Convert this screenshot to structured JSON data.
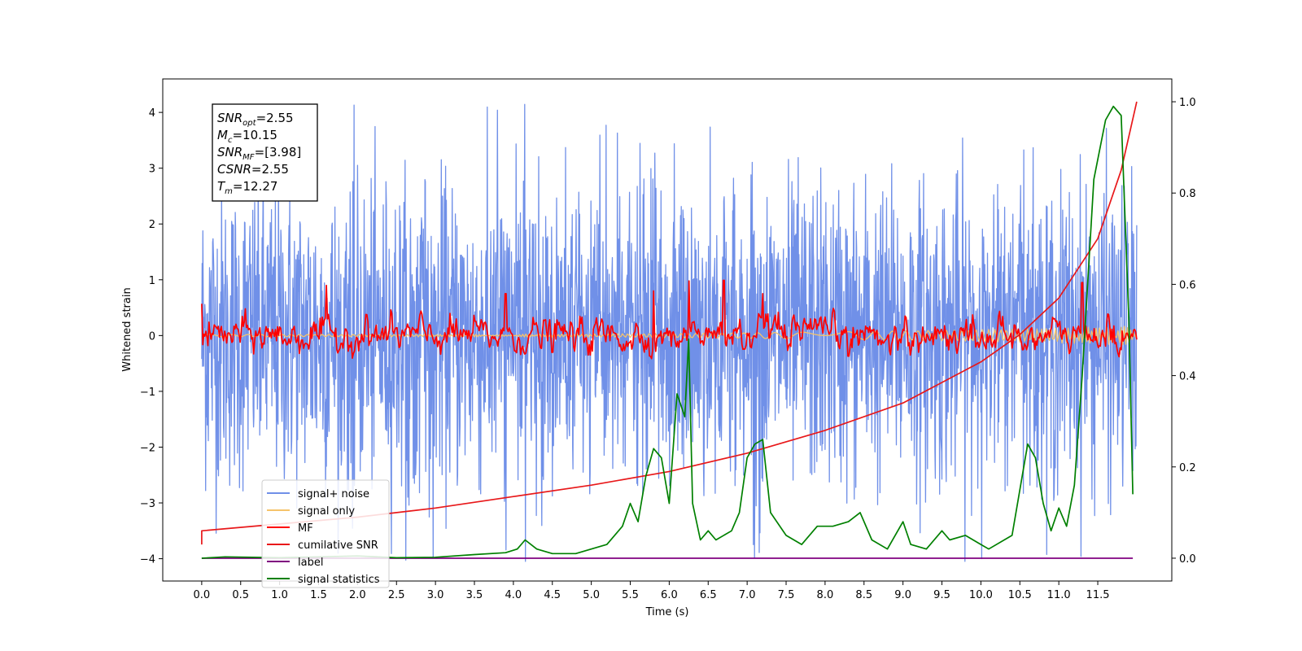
{
  "chart_data": {
    "type": "line",
    "title": "",
    "xlabel": "Time (s)",
    "ylabel": "Whitened strain",
    "xlim": [
      -0.5,
      12.45
    ],
    "ylim": [
      -4.4,
      4.6
    ],
    "y2lim": [
      -0.05,
      1.05
    ],
    "x_ticks": [
      "0.0",
      "0.5",
      "1.0",
      "1.5",
      "2.0",
      "2.5",
      "3.0",
      "3.5",
      "4.0",
      "4.5",
      "5.0",
      "5.5",
      "6.0",
      "6.5",
      "7.0",
      "7.5",
      "8.0",
      "8.5",
      "9.0",
      "9.5",
      "10.0",
      "10.5",
      "11.0",
      "11.5"
    ],
    "y_ticks": [
      "4",
      "3",
      "2",
      "1",
      "0",
      "−1",
      "−2",
      "−3",
      "−4"
    ],
    "y2_ticks": [
      "1.0",
      "0.8",
      "0.6",
      "0.4",
      "0.2",
      "0.0"
    ],
    "grid": false,
    "legend_position": "lower-left",
    "annotation": {
      "lines": [
        {
          "base": "SNR",
          "sub": "opt",
          "value": "=2.55"
        },
        {
          "base": "M",
          "sub": "c",
          "value": "=10.15"
        },
        {
          "base": "SNR",
          "sub": "MF",
          "value": "=[3.98]"
        },
        {
          "base": "CSNR",
          "sub": "",
          "value": "=2.55"
        },
        {
          "base": "T",
          "sub": "m",
          "value": "=12.27"
        }
      ]
    },
    "series": [
      {
        "name": "signal+ noise",
        "color": "#7090e8",
        "kind": "noise",
        "x_range": [
          0,
          12.0
        ],
        "amplitude": 4.15,
        "axis": "left"
      },
      {
        "name": "signal only",
        "color": "#f5c36b",
        "kind": "chirp",
        "x_range": [
          0,
          12.0
        ],
        "amplitude": 0.15,
        "axis": "left"
      },
      {
        "name": "MF",
        "color": "#ff0000",
        "kind": "noise",
        "x_range": [
          0,
          12.0
        ],
        "amplitude": 1.0,
        "axis": "left",
        "peaks": [
          [
            0.0,
            0.57
          ],
          [
            1.6,
            0.9
          ],
          [
            3.9,
            0.75
          ],
          [
            5.8,
            0.8
          ],
          [
            6.25,
            0.98
          ],
          [
            6.7,
            0.99
          ],
          [
            7.2,
            0.75
          ],
          [
            11.3,
            0.95
          ]
        ]
      },
      {
        "name": "cumilative SNR",
        "color": "#e8181a",
        "kind": "curve",
        "axis": "right",
        "points": [
          [
            0.0,
            0.03
          ],
          [
            0.0,
            0.06
          ],
          [
            1.0,
            0.075
          ],
          [
            2.0,
            0.09
          ],
          [
            3.0,
            0.11
          ],
          [
            4.0,
            0.135
          ],
          [
            5.0,
            0.16
          ],
          [
            6.0,
            0.19
          ],
          [
            7.0,
            0.23
          ],
          [
            8.0,
            0.28
          ],
          [
            9.0,
            0.34
          ],
          [
            10.0,
            0.43
          ],
          [
            10.5,
            0.49
          ],
          [
            11.0,
            0.57
          ],
          [
            11.5,
            0.7
          ],
          [
            11.8,
            0.85
          ],
          [
            12.0,
            1.0
          ]
        ]
      },
      {
        "name": "label",
        "color": "#800080",
        "kind": "flat",
        "axis": "right",
        "points": [
          [
            0.0,
            0.0
          ],
          [
            11.95,
            0.0
          ]
        ]
      },
      {
        "name": "signal statistics",
        "color": "#008000",
        "kind": "curve",
        "axis": "right",
        "points": [
          [
            0.0,
            0.0
          ],
          [
            0.3,
            0.003
          ],
          [
            1.0,
            0.001
          ],
          [
            2.0,
            0.005
          ],
          [
            2.5,
            0.001
          ],
          [
            3.0,
            0.002
          ],
          [
            3.5,
            0.008
          ],
          [
            3.9,
            0.012
          ],
          [
            4.05,
            0.02
          ],
          [
            4.15,
            0.04
          ],
          [
            4.3,
            0.02
          ],
          [
            4.5,
            0.01
          ],
          [
            4.8,
            0.01
          ],
          [
            5.0,
            0.02
          ],
          [
            5.2,
            0.03
          ],
          [
            5.4,
            0.07
          ],
          [
            5.5,
            0.12
          ],
          [
            5.6,
            0.08
          ],
          [
            5.7,
            0.18
          ],
          [
            5.8,
            0.24
          ],
          [
            5.9,
            0.22
          ],
          [
            6.0,
            0.12
          ],
          [
            6.1,
            0.36
          ],
          [
            6.2,
            0.31
          ],
          [
            6.25,
            0.48
          ],
          [
            6.3,
            0.12
          ],
          [
            6.4,
            0.04
          ],
          [
            6.5,
            0.06
          ],
          [
            6.6,
            0.04
          ],
          [
            6.8,
            0.06
          ],
          [
            6.9,
            0.1
          ],
          [
            7.0,
            0.22
          ],
          [
            7.1,
            0.25
          ],
          [
            7.2,
            0.26
          ],
          [
            7.3,
            0.1
          ],
          [
            7.5,
            0.05
          ],
          [
            7.7,
            0.03
          ],
          [
            7.9,
            0.07
          ],
          [
            8.1,
            0.07
          ],
          [
            8.3,
            0.08
          ],
          [
            8.45,
            0.1
          ],
          [
            8.6,
            0.04
          ],
          [
            8.8,
            0.02
          ],
          [
            9.0,
            0.08
          ],
          [
            9.1,
            0.03
          ],
          [
            9.3,
            0.02
          ],
          [
            9.5,
            0.06
          ],
          [
            9.6,
            0.04
          ],
          [
            9.8,
            0.05
          ],
          [
            10.0,
            0.03
          ],
          [
            10.1,
            0.02
          ],
          [
            10.4,
            0.05
          ],
          [
            10.6,
            0.25
          ],
          [
            10.7,
            0.22
          ],
          [
            10.8,
            0.12
          ],
          [
            10.9,
            0.06
          ],
          [
            11.0,
            0.11
          ],
          [
            11.1,
            0.07
          ],
          [
            11.2,
            0.16
          ],
          [
            11.3,
            0.4
          ],
          [
            11.45,
            0.83
          ],
          [
            11.6,
            0.96
          ],
          [
            11.7,
            0.99
          ],
          [
            11.8,
            0.97
          ],
          [
            11.9,
            0.52
          ],
          [
            11.95,
            0.14
          ]
        ]
      }
    ]
  }
}
